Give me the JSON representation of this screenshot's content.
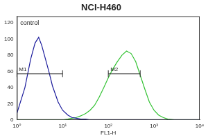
{
  "chart_data": {
    "type": "line",
    "title": "NCI-H460",
    "x_label": "FL1-H",
    "log": "x",
    "x": [
      1,
      1.5,
      2,
      2.5,
      3,
      3.5,
      4,
      5,
      6,
      8,
      10,
      13,
      16,
      20,
      25,
      32,
      40,
      50,
      63,
      80,
      100,
      126,
      158,
      200,
      251,
      316,
      398,
      501,
      631,
      794,
      1000,
      1259,
      1585,
      2000,
      3000,
      5000,
      10000
    ],
    "series": [
      {
        "color": "#1c1c9c",
        "values": [
          8,
          40,
          75,
          95,
          102,
          92,
          80,
          60,
          42,
          22,
          12,
          6,
          3,
          2,
          1,
          1,
          0,
          0,
          0,
          0,
          0,
          0,
          0,
          0,
          0,
          0,
          0,
          0,
          0,
          0,
          0,
          0,
          0,
          0,
          0,
          0,
          0
        ]
      },
      {
        "color": "#33c233",
        "values": [
          0,
          0,
          0,
          0,
          0,
          0,
          0,
          0,
          0,
          0,
          0,
          1,
          2,
          3,
          5,
          8,
          12,
          18,
          28,
          40,
          52,
          63,
          72,
          80,
          85,
          82,
          72,
          55,
          38,
          22,
          12,
          6,
          3,
          1,
          0,
          0,
          0
        ]
      }
    ],
    "xlim": [
      1,
      10000
    ],
    "xticks": [
      {
        "value": 1,
        "label": "10⁰"
      },
      {
        "value": 10,
        "label": "10¹"
      },
      {
        "value": 100,
        "label": "10²"
      },
      {
        "value": 1000,
        "label": "10³"
      },
      {
        "value": 10000,
        "label": "10⁴"
      }
    ],
    "ylim": [
      0,
      128
    ],
    "yticks": [
      0,
      20,
      40,
      60,
      80,
      100,
      120
    ],
    "grid": false,
    "annotations": [
      "control"
    ],
    "markers": [
      {
        "label": "M1",
        "x": [
          1,
          10
        ],
        "y": 57
      },
      {
        "label": "M2",
        "x": [
          100,
          500
        ],
        "y": 57
      }
    ]
  }
}
